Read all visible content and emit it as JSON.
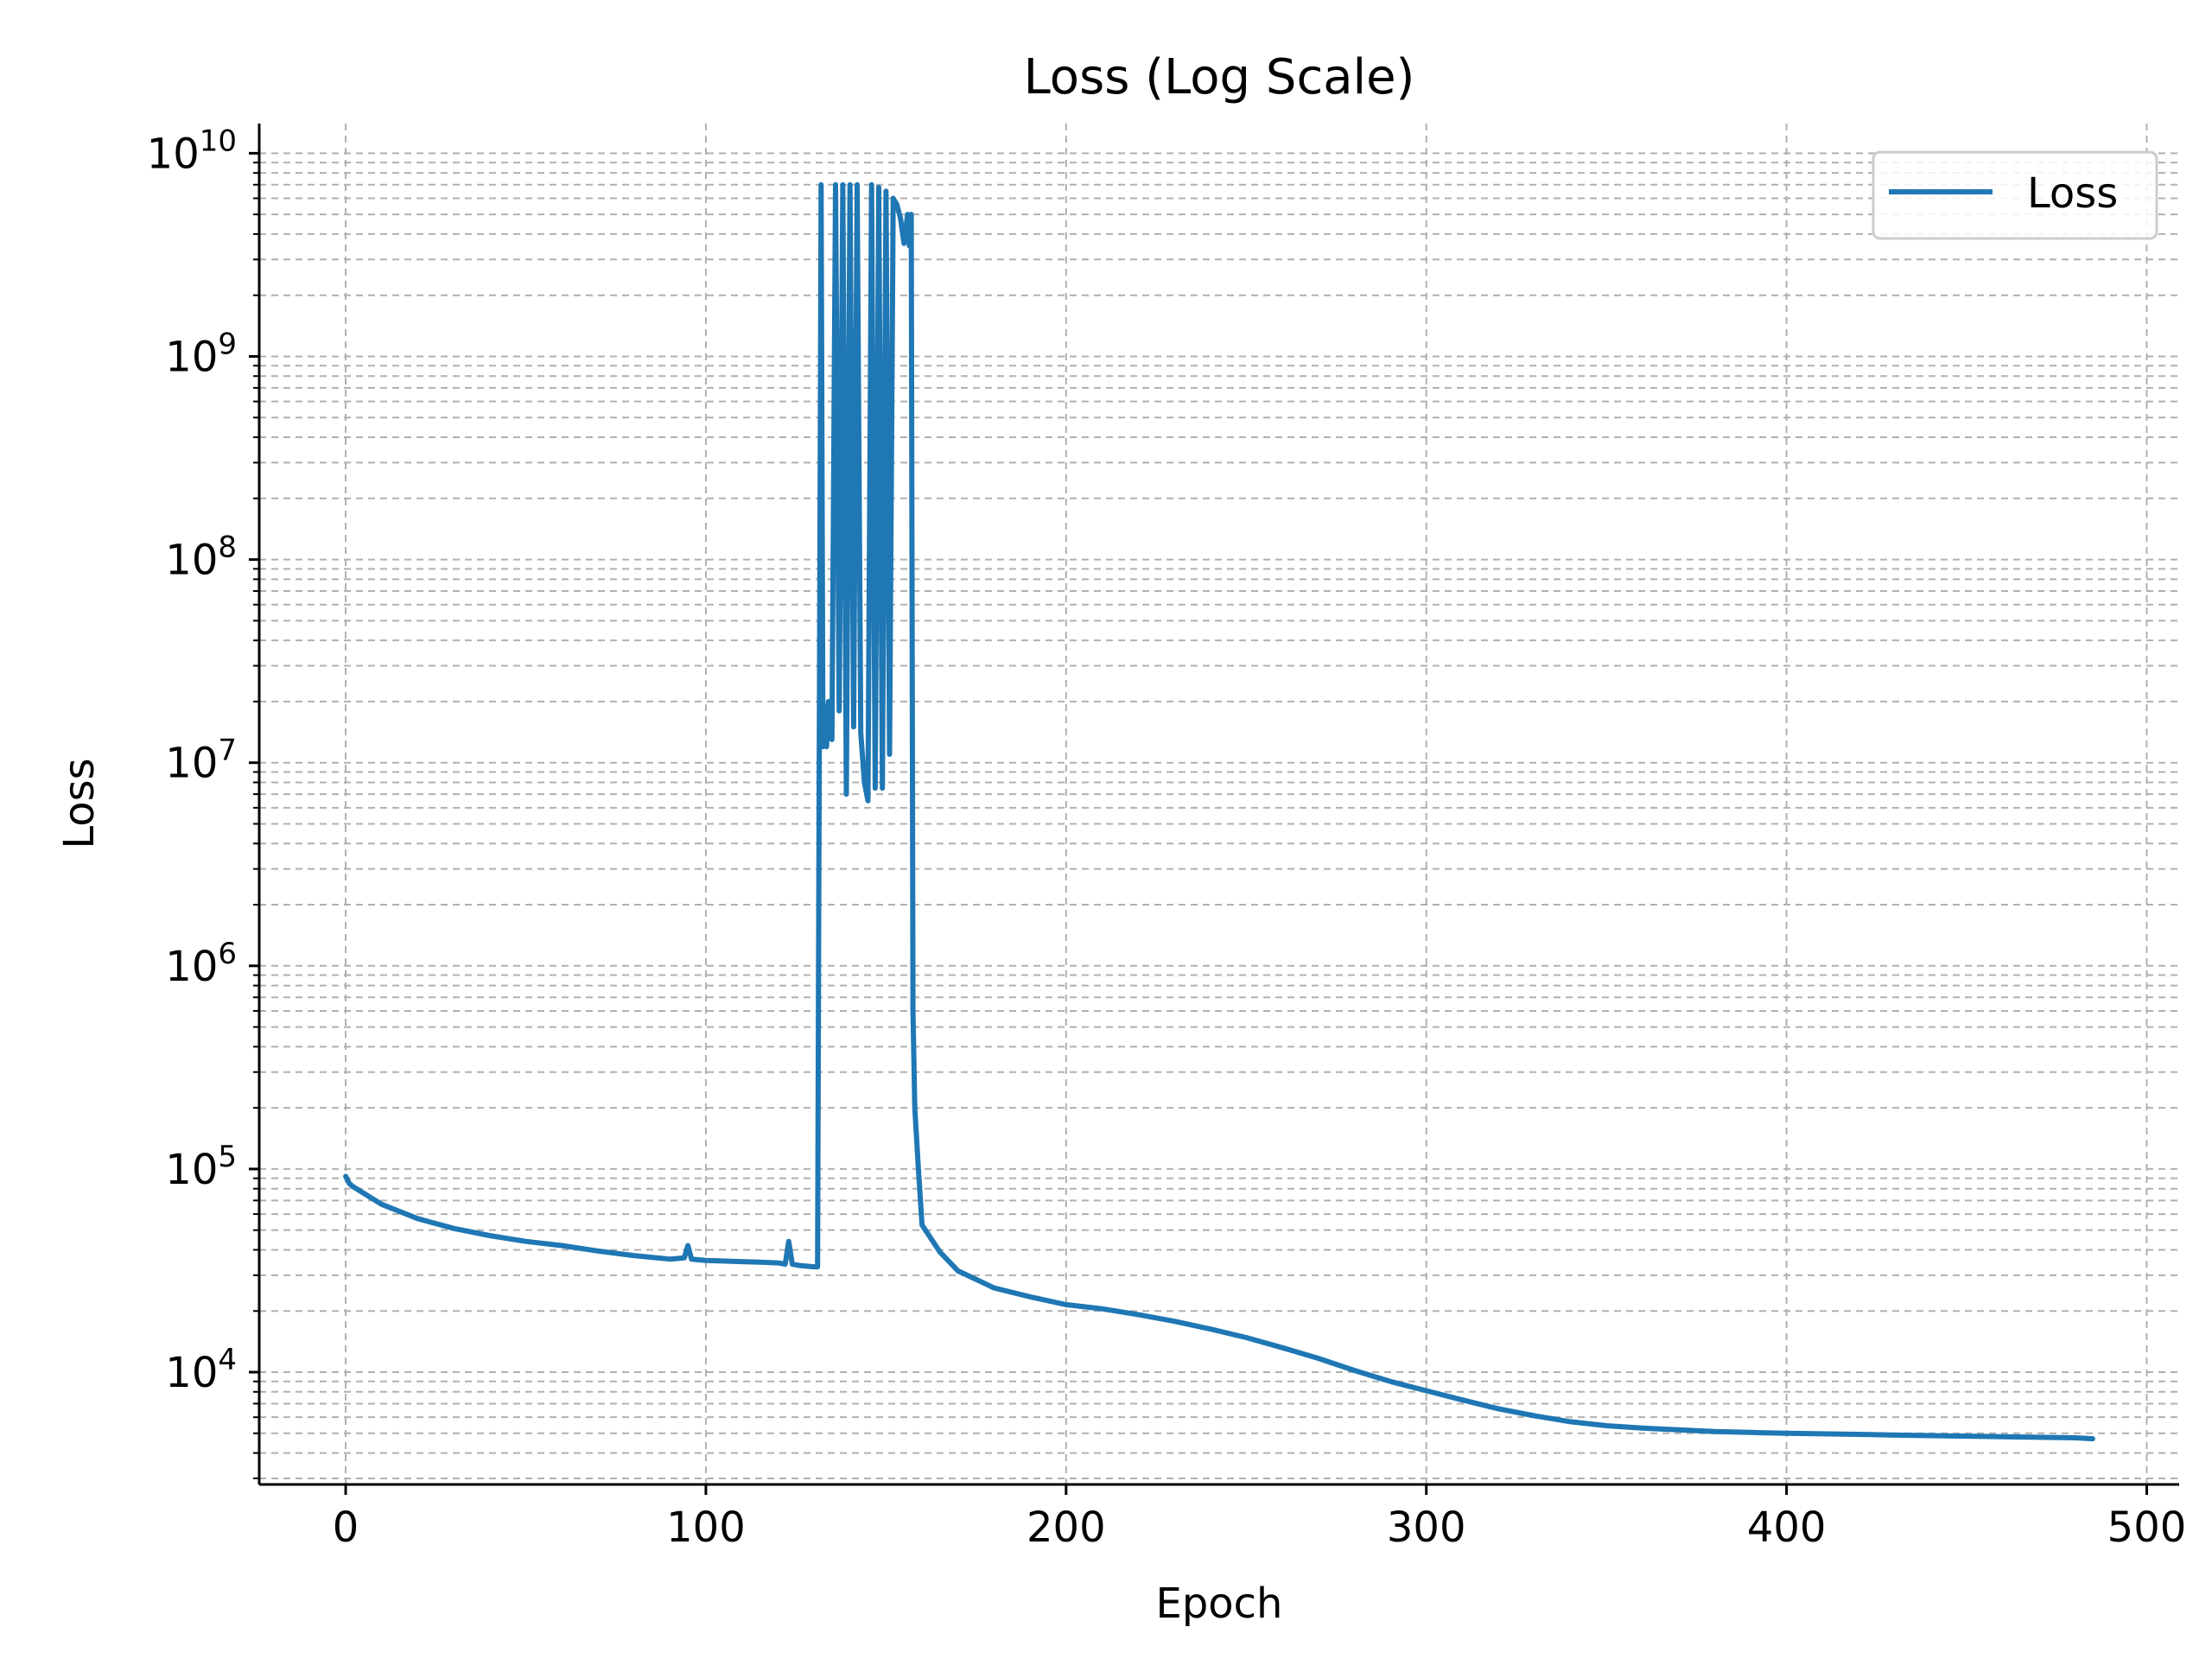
{
  "chart_data": {
    "type": "line",
    "title": "Loss (Log Scale)",
    "xlabel": "Epoch",
    "ylabel": "Loss",
    "yscale": "log",
    "xlim": [
      -24,
      509
    ],
    "ylim": [
      2800,
      14000000000
    ],
    "x_ticks": [
      0,
      100,
      200,
      300,
      400,
      500
    ],
    "x_tick_labels": [
      "0",
      "100",
      "200",
      "300",
      "400",
      "500"
    ],
    "y_ticks": [
      10000,
      100000,
      1000000,
      10000000,
      100000000,
      1000000000,
      10000000000
    ],
    "y_tick_labels": [
      {
        "base": "10",
        "exp": "4"
      },
      {
        "base": "10",
        "exp": "5"
      },
      {
        "base": "10",
        "exp": "6"
      },
      {
        "base": "10",
        "exp": "7"
      },
      {
        "base": "10",
        "exp": "8"
      },
      {
        "base": "10",
        "exp": "9"
      },
      {
        "base": "10",
        "exp": "10"
      }
    ],
    "grid": {
      "major": true,
      "minor": true,
      "style": "dashed"
    },
    "legend": {
      "position": "top-right",
      "entries": [
        "Loss"
      ]
    },
    "series": [
      {
        "name": "Loss",
        "color": "#1f77b4",
        "x": [
          0,
          1,
          2,
          5,
          10,
          20,
          30,
          40,
          50,
          60,
          70,
          80,
          90,
          94,
          95,
          96,
          100,
          110,
          115,
          120,
          122,
          123,
          124,
          126,
          130,
          131,
          132,
          132.5,
          133,
          133.5,
          134,
          135,
          136,
          137,
          138,
          139,
          140,
          141,
          142,
          143,
          144,
          145,
          146,
          147,
          148,
          149,
          150,
          151,
          152,
          153,
          154,
          155,
          156,
          156.5,
          157,
          157.5,
          158,
          159,
          160,
          165,
          170,
          180,
          190,
          200,
          210,
          220,
          230,
          240,
          250,
          260,
          270,
          280,
          290,
          300,
          310,
          320,
          330,
          340,
          350,
          360,
          370,
          380,
          390,
          400,
          410,
          420,
          430,
          440,
          450,
          460,
          470,
          480,
          485
        ],
        "y": [
          92000,
          85000,
          82000,
          76000,
          67000,
          57000,
          51000,
          47000,
          44000,
          42000,
          39500,
          37500,
          36000,
          36500,
          42000,
          36000,
          35500,
          35000,
          34800,
          34500,
          34000,
          44000,
          34000,
          33500,
          33000,
          33000,
          7000000000,
          12000000,
          19000000,
          12000000,
          20000000,
          13000000,
          7000000000,
          18000000,
          7000000000,
          7000000,
          7000000000,
          15000000,
          7000000000,
          14000000,
          8000000,
          6500000,
          7000000000,
          7500000,
          6800000000,
          7500000,
          6500000000,
          11000000,
          6000000000,
          5600000000,
          4800000000,
          3600000000,
          5000000000,
          3500000000,
          5000000000,
          600000,
          200000,
          100000,
          53000,
          39000,
          31500,
          26000,
          23500,
          21500,
          20500,
          19200,
          17800,
          16300,
          14800,
          13200,
          11700,
          10200,
          9000,
          8100,
          7300,
          6600,
          6100,
          5700,
          5450,
          5300,
          5200,
          5100,
          5050,
          5000,
          4970,
          4940,
          4900,
          4870,
          4840,
          4810,
          4780,
          4750,
          4700
        ]
      }
    ]
  }
}
